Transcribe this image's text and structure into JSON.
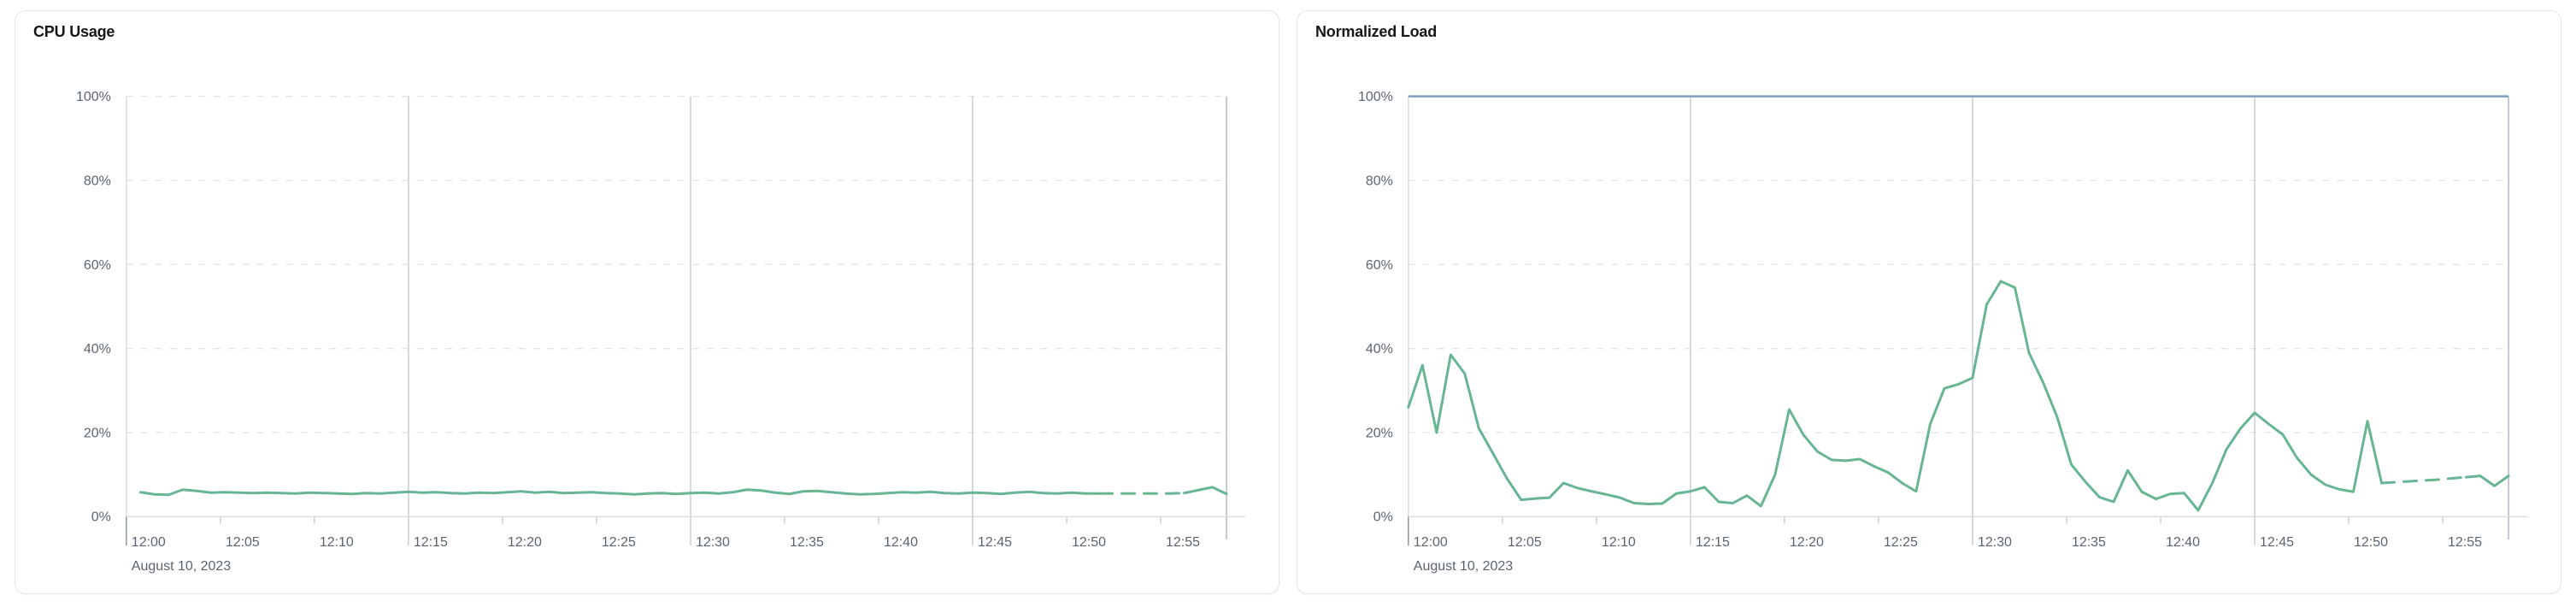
{
  "ui": {
    "background_color": "#ffffff",
    "panel_border_color": "#e2e6ef",
    "grid_dashed_color": "#e3e5ec",
    "grid_solid_color": "#c6cad2",
    "axis_line_color": "#d9dce2",
    "label_color": "#5b6470",
    "title_color": "#15171b"
  },
  "chart_data": [
    {
      "type": "line",
      "title": "CPU Usage",
      "x_axis": {
        "tick_labels": [
          "12:00",
          "12:05",
          "12:10",
          "12:15",
          "12:20",
          "12:25",
          "12:30",
          "12:35",
          "12:40",
          "12:45",
          "12:50",
          "12:55"
        ],
        "tick_minutes": [
          0,
          5,
          10,
          15,
          20,
          25,
          30,
          35,
          40,
          45,
          50,
          55
        ],
        "date_label": "August 10, 2023",
        "range_minutes": [
          0,
          58.5
        ],
        "solid_gridline_minutes": [
          15,
          30,
          45
        ],
        "grid": "horizontal-dashed, vertical-solid-15min"
      },
      "y_axis": {
        "tick_labels": [
          "0%",
          "20%",
          "40%",
          "60%",
          "80%",
          "100%"
        ],
        "tick_values": [
          0,
          20,
          40,
          60,
          80,
          100
        ],
        "range": [
          0,
          100
        ],
        "unit": "%"
      },
      "series": [
        {
          "name": "cpu-usage",
          "color": "#68b594",
          "start_minute": 0.75,
          "interval_minutes": 0.75,
          "dashed_from_index": 68,
          "dashed_to_index": 74,
          "values": [
            5.8,
            5.3,
            5.2,
            6.4,
            6.1,
            5.7,
            5.8,
            5.7,
            5.6,
            5.7,
            5.6,
            5.5,
            5.7,
            5.6,
            5.5,
            5.4,
            5.6,
            5.5,
            5.7,
            5.9,
            5.7,
            5.8,
            5.6,
            5.5,
            5.7,
            5.6,
            5.8,
            6.0,
            5.7,
            5.9,
            5.6,
            5.7,
            5.8,
            5.6,
            5.5,
            5.3,
            5.5,
            5.6,
            5.4,
            5.6,
            5.7,
            5.5,
            5.8,
            6.4,
            6.2,
            5.7,
            5.4,
            6.0,
            6.1,
            5.8,
            5.5,
            5.3,
            5.4,
            5.6,
            5.8,
            5.7,
            5.9,
            5.6,
            5.5,
            5.7,
            5.6,
            5.4,
            5.7,
            5.9,
            5.6,
            5.5,
            5.7,
            5.5,
            5.5,
            5.5,
            5.5,
            5.5,
            5.5,
            5.5,
            5.6,
            6.3,
            7.0,
            5.4
          ]
        }
      ]
    },
    {
      "type": "line",
      "title": "Normalized Load",
      "x_axis": {
        "tick_labels": [
          "12:00",
          "12:05",
          "12:10",
          "12:15",
          "12:20",
          "12:25",
          "12:30",
          "12:35",
          "12:40",
          "12:45",
          "12:50",
          "12:55"
        ],
        "tick_minutes": [
          0,
          5,
          10,
          15,
          20,
          25,
          30,
          35,
          40,
          45,
          50,
          55
        ],
        "date_label": "August 10, 2023",
        "range_minutes": [
          0,
          58.5
        ],
        "solid_gridline_minutes": [
          15,
          30,
          45
        ],
        "grid": "horizontal-dashed, vertical-solid-15min"
      },
      "y_axis": {
        "tick_labels": [
          "0%",
          "20%",
          "40%",
          "60%",
          "80%",
          "100%"
        ],
        "tick_values": [
          0,
          20,
          40,
          60,
          80,
          100
        ],
        "range": [
          0,
          100
        ],
        "unit": "%"
      },
      "series": [
        {
          "name": "load-limit",
          "color": "#84a2c4",
          "constant_value": 100
        },
        {
          "name": "normalized-load",
          "color": "#68b594",
          "start_minute": 0,
          "interval_minutes": 0.75,
          "dashed_from_index": 69,
          "dashed_to_index": 75,
          "values": [
            26,
            36,
            20,
            38.5,
            34,
            21,
            15,
            9,
            4,
            4.3,
            4.5,
            8,
            6.8,
            6,
            5.3,
            4.5,
            3.2,
            3,
            3.1,
            5.5,
            6,
            7,
            3.5,
            3.2,
            5,
            2.5,
            10,
            25.5,
            19.5,
            15.5,
            13.5,
            13.3,
            13.7,
            12,
            10.5,
            8,
            6,
            22,
            30.5,
            31.5,
            33,
            50.5,
            56,
            54.5,
            39,
            31.9,
            23.7,
            12.4,
            8.3,
            4.6,
            3.5,
            11,
            5.9,
            4.2,
            5.4,
            5.6,
            1.5,
            8,
            16,
            21,
            24.7,
            22,
            19.5,
            14,
            10,
            7.6,
            6.5,
            5.9,
            22.7,
            8,
            8.2,
            8.4,
            8.6,
            8.8,
            9.1,
            9.4,
            9.7,
            7.3,
            9.7
          ]
        }
      ]
    }
  ]
}
